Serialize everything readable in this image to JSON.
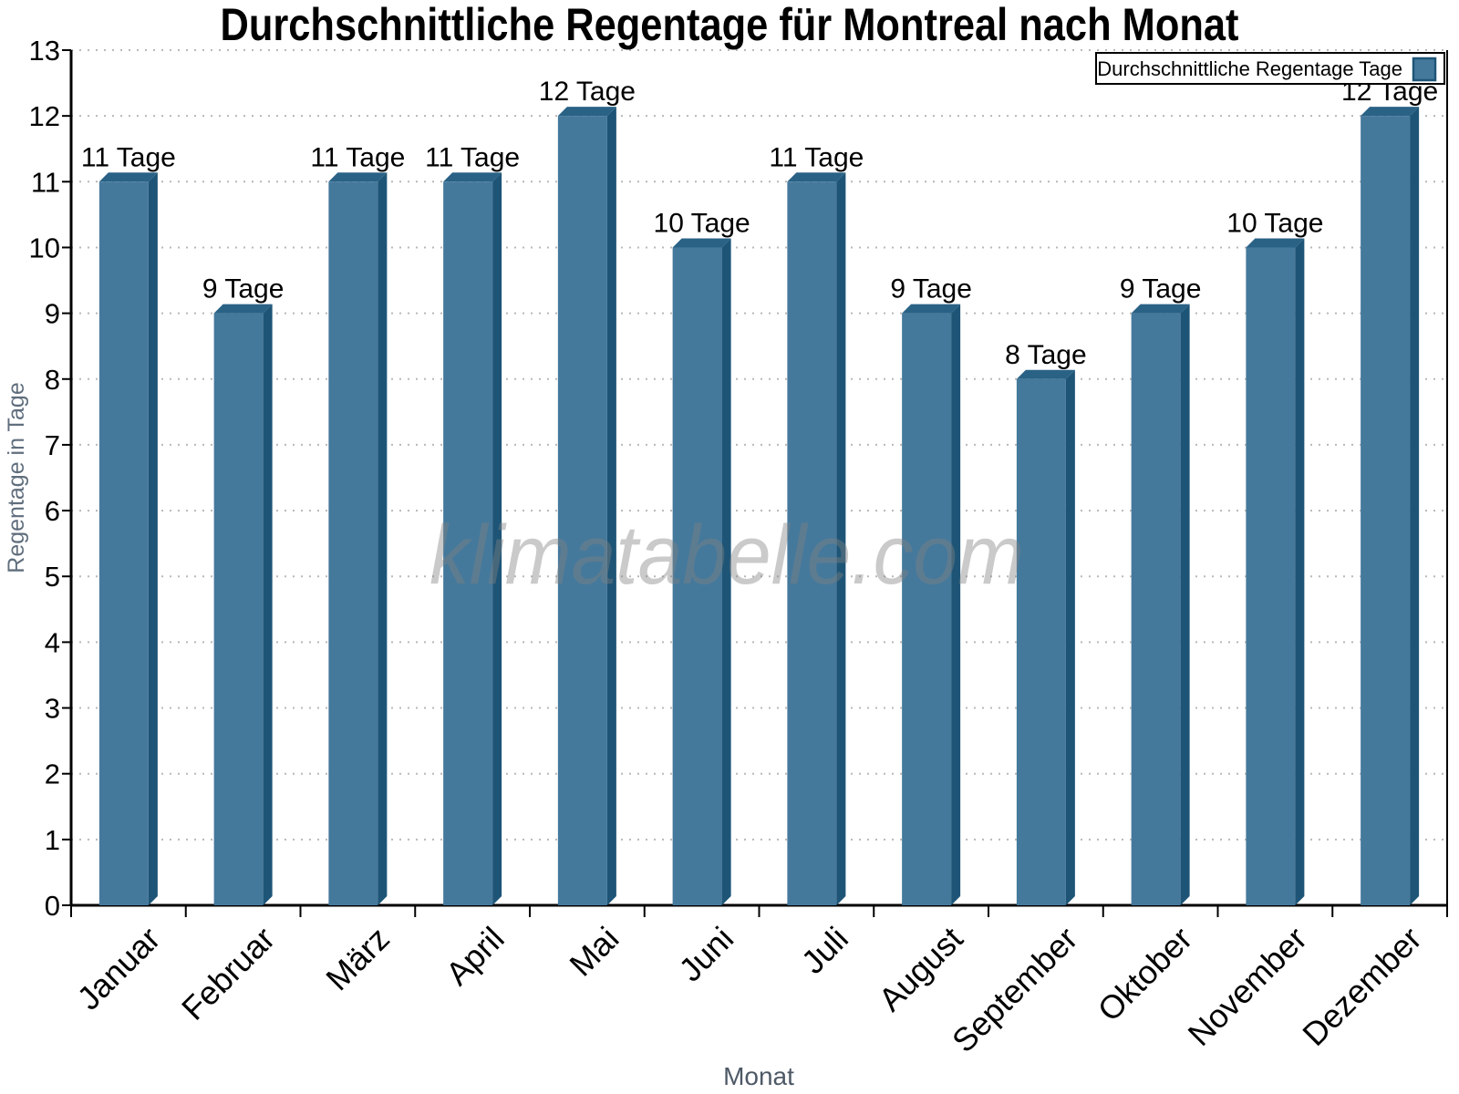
{
  "title": "Durchschnittliche Regentage für Montreal nach Monat",
  "watermark": "klimatabelle.com",
  "legend": {
    "label": "Durchschnittliche Regentage Tage"
  },
  "y_axis": {
    "title": "Regentage in Tage",
    "tick_labels": [
      "0",
      "1",
      "2",
      "3",
      "4",
      "5",
      "6",
      "7",
      "8",
      "9",
      "10",
      "11",
      "12",
      "13"
    ]
  },
  "x_axis": {
    "title": "Monat"
  },
  "colors": {
    "bar_front": "#45799c",
    "bar_top": "#2a6286",
    "bar_side": "#1e5577",
    "grid": "#b8b8b8",
    "axis": "#000000",
    "y_title": "#606e7d",
    "x_title": "#4d5966",
    "watermark": "#808080",
    "legend_border": "#000000",
    "label_text": "#000000"
  },
  "chart_data": {
    "type": "bar",
    "title": "Durchschnittliche Regentage für Montreal nach Monat",
    "categories": [
      "Januar",
      "Februar",
      "März",
      "April",
      "Mai",
      "Juni",
      "Juli",
      "August",
      "September",
      "Oktober",
      "November",
      "Dezember"
    ],
    "series": [
      {
        "name": "Durchschnittliche Regentage Tage",
        "values": [
          11,
          9,
          11,
          11,
          12,
          10,
          11,
          9,
          8,
          9,
          10,
          12
        ]
      }
    ],
    "value_label_suffix": " Tage",
    "value_labels": [
      "11 Tage",
      "9 Tage",
      "11 Tage",
      "11 Tage",
      "12 Tage",
      "10 Tage",
      "11 Tage",
      "9 Tage",
      "8 Tage",
      "9 Tage",
      "10 Tage",
      "12 Tage"
    ],
    "xlabel": "Monat",
    "ylabel": "Regentage in Tage",
    "ylim": [
      0,
      13
    ],
    "ytick_step": 1,
    "grid": "horizontal-dotted",
    "legend_position": "top-right",
    "style": "3d-bars",
    "watermark": "klimatabelle.com"
  }
}
